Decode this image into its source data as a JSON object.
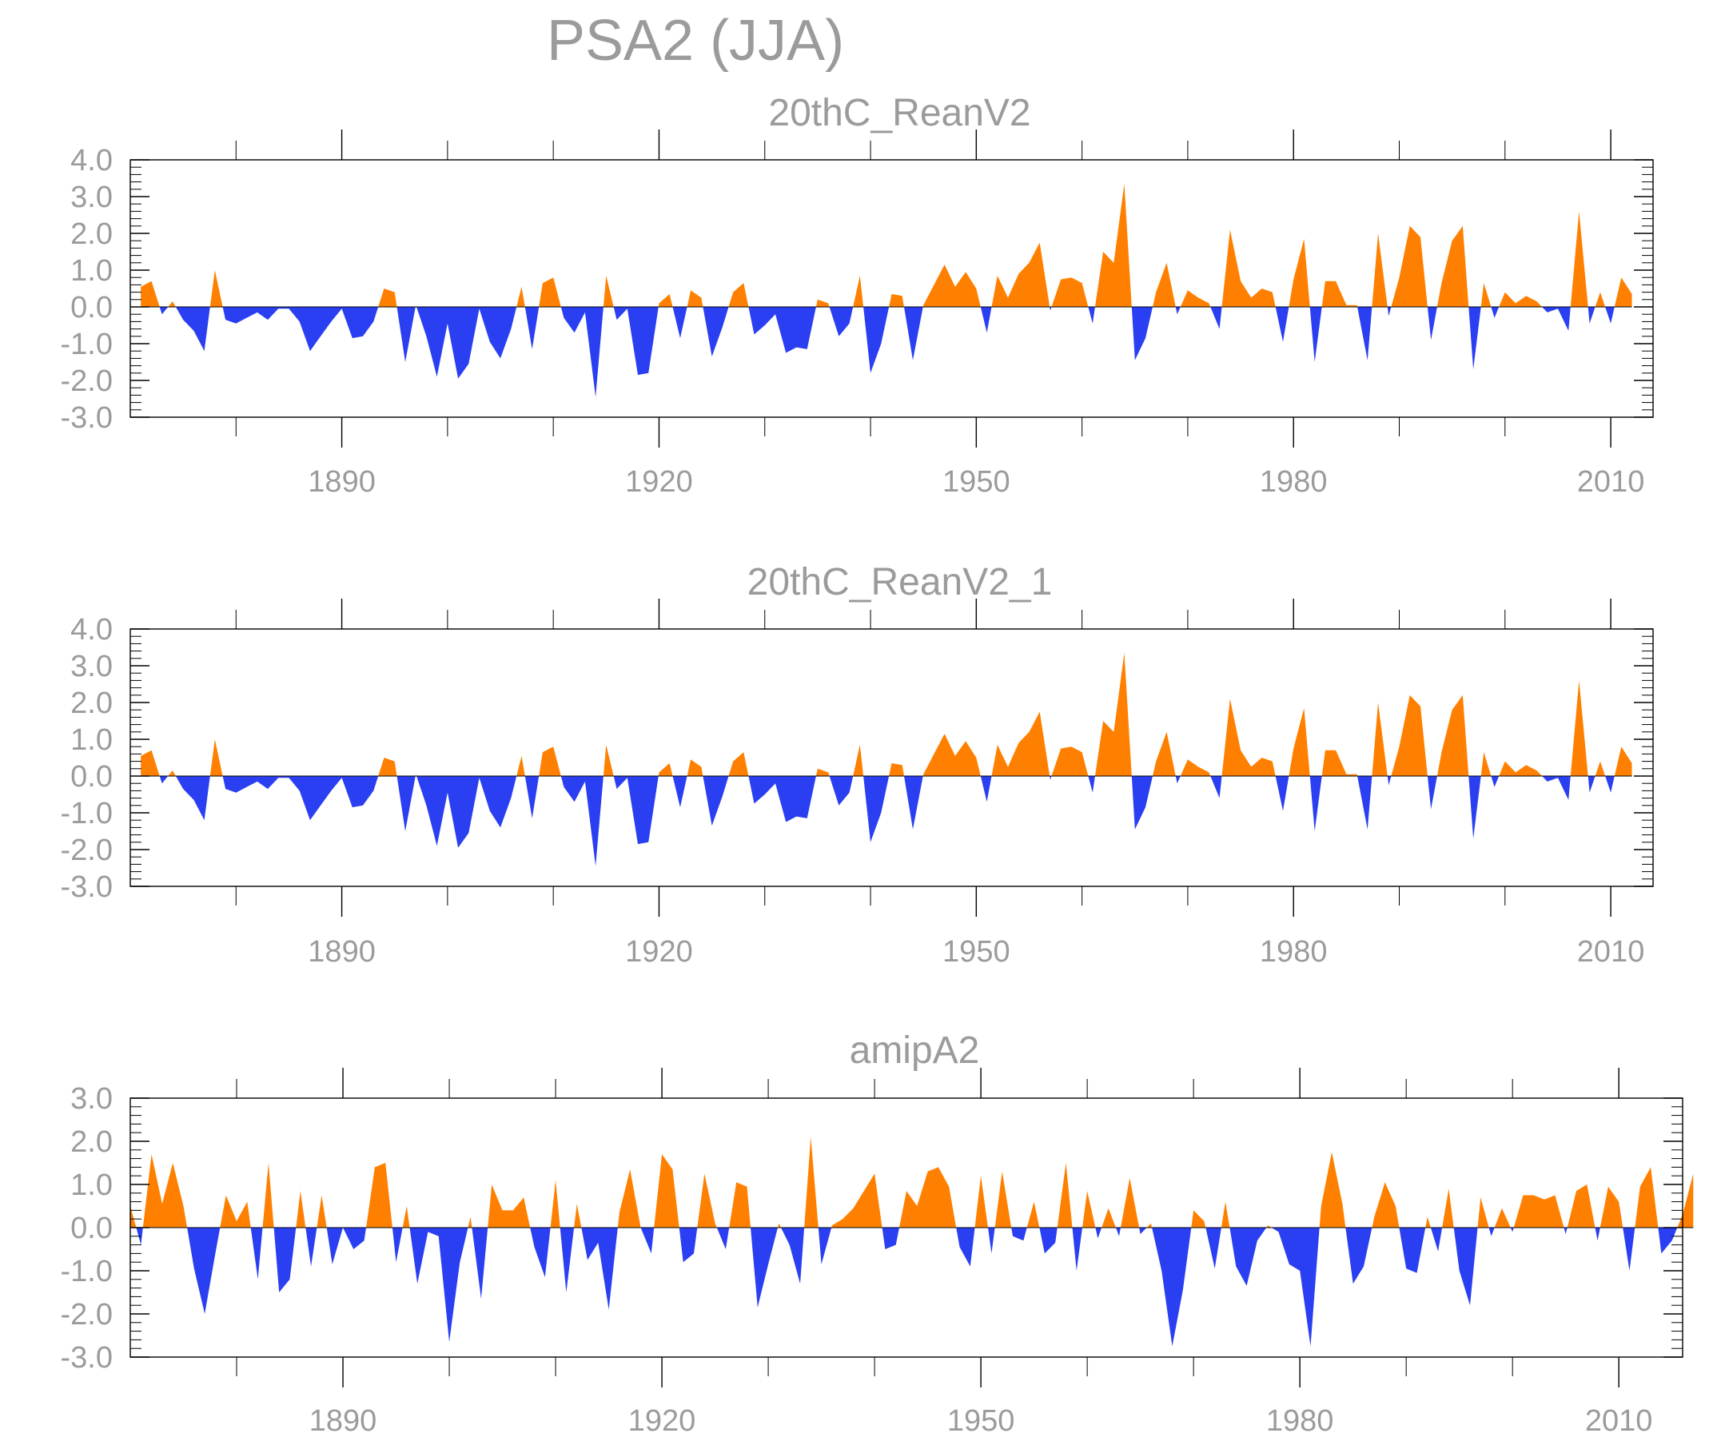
{
  "figure_title": "PSA2 (JJA)",
  "colors": {
    "positive": "#ff8000",
    "negative": "#2a3ff2",
    "text": "#9b9b9b",
    "frame": "#000000"
  },
  "chart_data": [
    {
      "type": "area",
      "title": "20thC_ReanV2",
      "xlabel": "",
      "ylabel": "",
      "xlim": [
        1870,
        2014
      ],
      "ylim": [
        -3,
        4
      ],
      "x_ticks": [
        1890,
        1920,
        1950,
        1980,
        2010
      ],
      "y_ticks": [
        "4.0",
        "3.0",
        "2.0",
        "1.0",
        "0.0",
        "-1.0",
        "-2.0",
        "-3.0"
      ],
      "fill_above_zero": "#ff8000",
      "fill_below_zero": "#2a3ff2",
      "years_start": 1871,
      "values": [
        0.55,
        0.7,
        -0.2,
        0.15,
        -0.35,
        -0.65,
        -1.2,
        1.0,
        -0.35,
        -0.45,
        -0.3,
        -0.15,
        -0.35,
        -0.05,
        -0.05,
        -0.4,
        -1.2,
        -0.8,
        -0.4,
        -0.05,
        -0.85,
        -0.8,
        -0.4,
        0.5,
        0.4,
        -1.5,
        0.05,
        -0.8,
        -1.9,
        -0.45,
        -1.95,
        -1.55,
        -0.05,
        -0.95,
        -1.4,
        -0.6,
        0.55,
        -1.15,
        0.65,
        0.8,
        -0.3,
        -0.7,
        -0.15,
        -2.45,
        0.85,
        -0.35,
        -0.05,
        -1.85,
        -1.8,
        0.1,
        0.35,
        -0.85,
        0.45,
        0.25,
        -1.35,
        -0.55,
        0.4,
        0.65,
        -0.75,
        -0.5,
        -0.2,
        -1.25,
        -1.1,
        -1.15,
        0.2,
        0.1,
        -0.8,
        -0.45,
        0.85,
        -1.8,
        -1.0,
        0.35,
        0.3,
        -1.45,
        0.05,
        0.6,
        1.15,
        0.55,
        0.95,
        0.5,
        -0.7,
        0.85,
        0.25,
        0.9,
        1.2,
        1.75,
        -0.1,
        0.75,
        0.8,
        0.65,
        -0.45,
        1.5,
        1.2,
        3.35,
        -1.45,
        -0.85,
        0.4,
        1.2,
        -0.2,
        0.45,
        0.25,
        0.1,
        -0.6,
        2.1,
        0.7,
        0.25,
        0.5,
        0.4,
        -0.95,
        0.75,
        1.85,
        -1.5,
        0.7,
        0.7,
        0.05,
        0.05,
        -1.45,
        2.0,
        -0.25,
        0.8,
        2.2,
        1.9,
        -0.9,
        0.65,
        1.8,
        2.2,
        -1.7,
        0.65,
        -0.3,
        0.4,
        0.1,
        0.3,
        0.15,
        -0.15,
        -0.05,
        -0.65,
        2.6,
        -0.45,
        0.4,
        -0.45,
        0.8,
        0.35
      ]
    },
    {
      "type": "area",
      "title": "20thC_ReanV2_1",
      "xlabel": "",
      "ylabel": "",
      "xlim": [
        1870,
        2014
      ],
      "ylim": [
        -3,
        4
      ],
      "x_ticks": [
        1890,
        1920,
        1950,
        1980,
        2010
      ],
      "y_ticks": [
        "4.0",
        "3.0",
        "2.0",
        "1.0",
        "0.0",
        "-1.0",
        "-2.0",
        "-3.0"
      ],
      "fill_above_zero": "#ff8000",
      "fill_below_zero": "#2a3ff2",
      "years_start": 1871,
      "values": [
        0.55,
        0.7,
        -0.2,
        0.15,
        -0.35,
        -0.65,
        -1.2,
        1.0,
        -0.35,
        -0.45,
        -0.3,
        -0.15,
        -0.35,
        -0.05,
        -0.05,
        -0.4,
        -1.2,
        -0.8,
        -0.4,
        -0.05,
        -0.85,
        -0.8,
        -0.4,
        0.5,
        0.4,
        -1.5,
        0.05,
        -0.8,
        -1.9,
        -0.45,
        -1.95,
        -1.55,
        -0.05,
        -0.95,
        -1.4,
        -0.6,
        0.55,
        -1.15,
        0.65,
        0.8,
        -0.3,
        -0.7,
        -0.15,
        -2.45,
        0.85,
        -0.35,
        -0.05,
        -1.85,
        -1.8,
        0.1,
        0.35,
        -0.85,
        0.45,
        0.25,
        -1.35,
        -0.55,
        0.4,
        0.65,
        -0.75,
        -0.5,
        -0.2,
        -1.25,
        -1.1,
        -1.15,
        0.2,
        0.1,
        -0.8,
        -0.45,
        0.85,
        -1.8,
        -1.0,
        0.35,
        0.3,
        -1.45,
        0.05,
        0.6,
        1.15,
        0.55,
        0.95,
        0.5,
        -0.7,
        0.85,
        0.25,
        0.9,
        1.2,
        1.75,
        -0.1,
        0.75,
        0.8,
        0.65,
        -0.45,
        1.5,
        1.2,
        3.35,
        -1.45,
        -0.85,
        0.4,
        1.2,
        -0.2,
        0.45,
        0.25,
        0.1,
        -0.6,
        2.1,
        0.7,
        0.25,
        0.5,
        0.4,
        -0.95,
        0.75,
        1.85,
        -1.5,
        0.7,
        0.7,
        0.05,
        0.05,
        -1.45,
        2.0,
        -0.25,
        0.8,
        2.2,
        1.9,
        -0.9,
        0.65,
        1.8,
        2.2,
        -1.7,
        0.65,
        -0.3,
        0.4,
        0.1,
        0.3,
        0.15,
        -0.15,
        -0.05,
        -0.65,
        2.6,
        -0.45,
        0.4,
        -0.45,
        0.8,
        0.35
      ]
    },
    {
      "type": "area",
      "title": "amipA2",
      "xlabel": "",
      "ylabel": "",
      "xlim": [
        1870,
        2016
      ],
      "ylim": [
        -3,
        3
      ],
      "x_ticks": [
        1890,
        1920,
        1950,
        1980,
        2010
      ],
      "y_ticks": [
        "3.0",
        "2.0",
        "1.0",
        "0.0",
        "-1.0",
        "-2.0",
        "-3.0"
      ],
      "fill_above_zero": "#ff8000",
      "fill_below_zero": "#2a3ff2",
      "years_start": 1870,
      "values": [
        0.5,
        -0.4,
        1.7,
        0.55,
        1.5,
        0.5,
        -0.95,
        -2.0,
        -0.6,
        0.75,
        0.15,
        0.6,
        -1.2,
        1.5,
        -1.5,
        -1.2,
        0.85,
        -0.9,
        0.75,
        -0.85,
        0.0,
        -0.5,
        -0.3,
        1.4,
        1.5,
        -0.8,
        0.5,
        -1.3,
        -0.1,
        -0.2,
        -2.65,
        -0.8,
        0.25,
        -1.65,
        1.0,
        0.4,
        0.4,
        0.7,
        -0.45,
        -1.15,
        1.1,
        -1.5,
        0.55,
        -0.75,
        -0.35,
        -1.9,
        0.35,
        1.35,
        0.0,
        -0.6,
        1.7,
        1.35,
        -0.8,
        -0.6,
        1.25,
        0.1,
        -0.5,
        1.05,
        0.95,
        -1.85,
        -0.85,
        0.1,
        -0.4,
        -1.3,
        2.1,
        -0.85,
        0.05,
        0.2,
        0.45,
        0.85,
        1.25,
        -0.5,
        -0.4,
        0.85,
        0.5,
        1.3,
        1.4,
        0.95,
        -0.45,
        -0.9,
        1.2,
        -0.6,
        1.3,
        -0.2,
        -0.3,
        0.6,
        -0.6,
        -0.35,
        1.5,
        -1.0,
        0.85,
        -0.25,
        0.45,
        -0.2,
        1.15,
        -0.15,
        0.1,
        -1.0,
        -2.75,
        -1.45,
        0.4,
        0.15,
        -0.95,
        0.6,
        -0.9,
        -1.35,
        -0.3,
        0.05,
        -0.1,
        -0.85,
        -1.0,
        -2.75,
        0.5,
        1.75,
        0.55,
        -1.3,
        -0.9,
        0.25,
        1.05,
        0.5,
        -0.95,
        -1.05,
        0.25,
        -0.55,
        0.9,
        -1.0,
        -1.8,
        0.7,
        -0.2,
        0.45,
        -0.1,
        0.75,
        0.75,
        0.65,
        0.75,
        -0.15,
        0.85,
        1.0,
        -0.3,
        0.95,
        0.6,
        -1.0,
        0.95,
        1.4,
        -0.6,
        -0.3,
        0.3,
        1.25
      ]
    }
  ]
}
